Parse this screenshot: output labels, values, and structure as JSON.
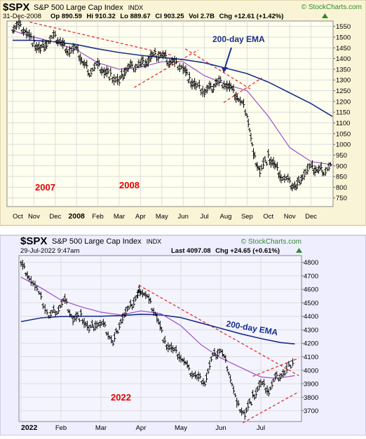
{
  "charts": [
    {
      "header": {
        "symbol": "$SPX",
        "name": "S&P 500 Large Cap Index",
        "exchange": "INDX",
        "credit": "© StockCharts.com",
        "date": "31-Dec-2008",
        "quote_parts": [
          "Op 890.59",
          "Hi 910.32",
          "Lo 889.67",
          "Cl 903.25",
          "Vol 2.7B",
          "Chg +12.61 (+1.42%)"
        ],
        "quote_icon": "up-triangle-icon"
      },
      "annotations": {
        "ema_label": "200-day EMA",
        "year_left": "2007",
        "year_right": "2008"
      },
      "colors": {
        "panel_bg": "#fffff0",
        "frame_bg": "#faf4d6",
        "price": "#000000",
        "ema_long": "#1a2f8c",
        "ema_short": "#9b4fc6",
        "trendline": "#e03030",
        "year_label": "#e00000",
        "credit": "#2e8b2e"
      },
      "chart_data": {
        "type": "line",
        "x_tick_labels": [
          "Oct",
          "Nov",
          "Dec",
          "2008",
          "Feb",
          "Mar",
          "Apr",
          "May",
          "Jun",
          "Jul",
          "Aug",
          "Sep",
          "Oct",
          "Nov",
          "Dec"
        ],
        "y_ticks": [
          750,
          800,
          850,
          900,
          950,
          1000,
          1050,
          1100,
          1150,
          1200,
          1250,
          1300,
          1350,
          1400,
          1450,
          1500,
          1550
        ],
        "ylim": [
          710,
          1575
        ],
        "grid": true,
        "series": [
          {
            "name": "Price",
            "style": "ohlc",
            "x": [
              0,
              0.3,
              0.65,
              1,
              1.3,
              1.6,
              2,
              2.3,
              2.6,
              3,
              3.3,
              3.6,
              4,
              4.3,
              4.6,
              5,
              5.3,
              5.6,
              6,
              6.3,
              6.6,
              7,
              7.3,
              7.6,
              8,
              8.3,
              8.6,
              9,
              9.3,
              9.6,
              10,
              10.3,
              10.6,
              11,
              11.3,
              11.6,
              12,
              12.3,
              12.6,
              13,
              13.3,
              13.6,
              14,
              14.3,
              14.6,
              15
            ],
            "y": [
              1545,
              1555,
              1525,
              1470,
              1440,
              1475,
              1500,
              1470,
              1440,
              1440,
              1380,
              1340,
              1370,
              1340,
              1320,
              1290,
              1350,
              1360,
              1375,
              1390,
              1410,
              1420,
              1390,
              1380,
              1360,
              1300,
              1270,
              1250,
              1260,
              1290,
              1285,
              1250,
              1210,
              1150,
              950,
              880,
              940,
              900,
              850,
              820,
              800,
              860,
              890,
              880,
              880,
              900
            ]
          },
          {
            "name": "200-day EMA",
            "x": [
              0,
              1,
              2,
              3,
              4,
              5,
              6,
              7,
              8,
              9,
              10,
              11,
              12,
              13,
              14,
              15
            ],
            "y": [
              1485,
              1485,
              1478,
              1465,
              1445,
              1428,
              1415,
              1405,
              1395,
              1380,
              1355,
              1330,
              1290,
              1240,
              1190,
              1130
            ]
          },
          {
            "name": "50-day EMA",
            "x": [
              0,
              1,
              2,
              3,
              4,
              5,
              6,
              7,
              8,
              9,
              10,
              11,
              12,
              13,
              14,
              15
            ],
            "y": [
              1530,
              1500,
              1475,
              1440,
              1380,
              1350,
              1360,
              1385,
              1385,
              1320,
              1280,
              1250,
              1130,
              985,
              920,
              905
            ]
          }
        ],
        "trendlines": [
          {
            "x": [
              0.8,
              7.5
            ],
            "y": [
              1570,
              1415
            ]
          },
          {
            "x": [
              5.7,
              8.7
            ],
            "y": [
              1265,
              1440
            ]
          },
          {
            "x": [
              8.1,
              11.2
            ],
            "y": [
              1445,
              1255
            ]
          },
          {
            "x": [
              9.9,
              11.7
            ],
            "y": [
              1195,
              1310
            ]
          }
        ]
      }
    },
    {
      "header": {
        "symbol": "$SPX",
        "name": "S&P 500 Large Cap Index",
        "exchange": "INDX",
        "credit": "© StockCharts.com",
        "date": "29-Jul-2022 9:47am",
        "quote_parts": [
          "Last 4097.08",
          "Chg +24.65 (+0.61%)"
        ],
        "quote_icon": "up-triangle-icon"
      },
      "annotations": {
        "ema_label": "200-day EMA",
        "year_left": "2022"
      },
      "colors": {
        "panel_bg": "#f4f4ff",
        "frame_bg": "#eeeeff",
        "price": "#000000",
        "ema_long": "#1a2f8c",
        "ema_short": "#9b4fc6",
        "trendline": "#e03030",
        "year_label": "#e00000",
        "credit": "#2e8b2e"
      },
      "chart_data": {
        "type": "line",
        "x_tick_labels": [
          "2022",
          "Feb",
          "Mar",
          "Apr",
          "May",
          "Jun",
          "Jul"
        ],
        "y_ticks": [
          3700,
          3800,
          3900,
          4000,
          4100,
          4200,
          4300,
          4400,
          4500,
          4600,
          4700,
          4800
        ],
        "ylim": [
          3620,
          4850
        ],
        "grid": true,
        "series": [
          {
            "name": "Price",
            "style": "ohlc",
            "x": [
              0,
              0.2,
              0.45,
              0.7,
              0.9,
              1.1,
              1.3,
              1.5,
              1.7,
              1.9,
              2.1,
              2.3,
              2.5,
              2.7,
              2.9,
              3,
              3.2,
              3.4,
              3.6,
              3.8,
              4,
              4.2,
              4.4,
              4.6,
              4.8,
              5,
              5.2,
              5.4,
              5.6,
              5.8,
              6,
              6.2,
              6.4,
              6.6,
              6.85
            ],
            "y": [
              4790,
              4700,
              4560,
              4400,
              4450,
              4520,
              4380,
              4400,
              4300,
              4350,
              4320,
              4200,
              4380,
              4450,
              4550,
              4600,
              4520,
              4400,
              4200,
              4150,
              4100,
              4000,
              3950,
              3920,
              4100,
              4150,
              4000,
              3750,
              3680,
              3800,
              3900,
              3850,
              3950,
              3980,
              4097
            ]
          },
          {
            "name": "200-day EMA",
            "x": [
              0,
              0.5,
              1,
              1.5,
              2,
              2.5,
              3,
              3.5,
              4,
              4.5,
              5,
              5.5,
              6,
              6.5,
              6.85
            ],
            "y": [
              4360,
              4388,
              4398,
              4400,
              4400,
              4405,
              4415,
              4410,
              4390,
              4350,
              4310,
              4270,
              4235,
              4205,
              4195
            ]
          },
          {
            "name": "50-day EMA",
            "x": [
              0,
              0.5,
              1,
              1.5,
              2,
              2.5,
              3,
              3.5,
              4,
              4.5,
              5,
              5.5,
              6,
              6.4,
              6.85
            ],
            "y": [
              4690,
              4610,
              4520,
              4470,
              4430,
              4410,
              4440,
              4420,
              4330,
              4190,
              4090,
              4020,
              3950,
              3940,
              3960
            ]
          }
        ],
        "trendlines": [
          {
            "x": [
              2.95,
              6.95
            ],
            "y": [
              4630,
              3960
            ]
          },
          {
            "x": [
              5.8,
              6.95
            ],
            "y": [
              3955,
              4090
            ]
          },
          {
            "x": [
              5.55,
              6.95
            ],
            "y": [
              3610,
              3840
            ]
          }
        ]
      }
    }
  ]
}
